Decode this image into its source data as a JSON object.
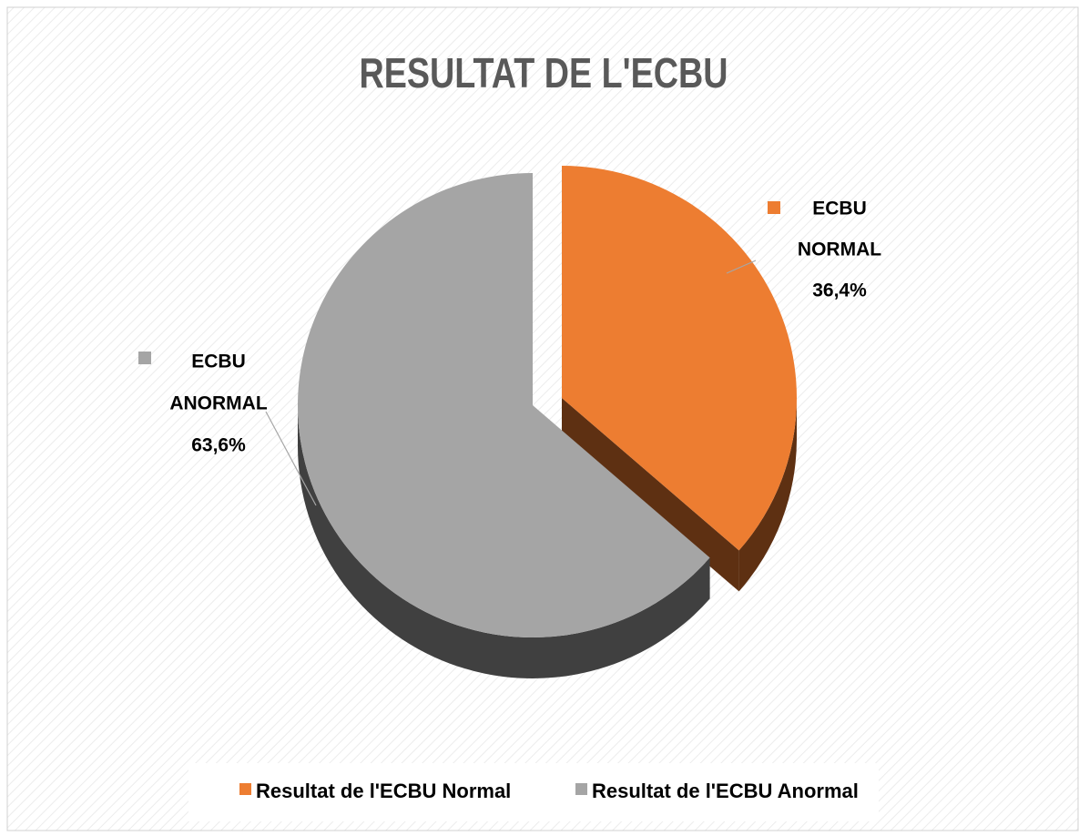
{
  "chart_data": {
    "type": "pie",
    "title": "RESULTAT DE L'ECBU",
    "categories": [
      "Resultat de l'ECBU Normal",
      "Resultat de l'ECBU Anormal"
    ],
    "data_label_names": [
      [
        "ECBU",
        "NORMAL"
      ],
      [
        "ECBU",
        "ANORMAL"
      ]
    ],
    "values": [
      36.4,
      63.6
    ],
    "value_labels": [
      "36,4%",
      "63,6%"
    ],
    "colors": [
      "#ed7d31",
      "#a5a5a5"
    ],
    "side_colors": [
      "#5e3012",
      "#404040"
    ],
    "exploded": [
      true,
      false
    ],
    "legend": "bottom"
  }
}
